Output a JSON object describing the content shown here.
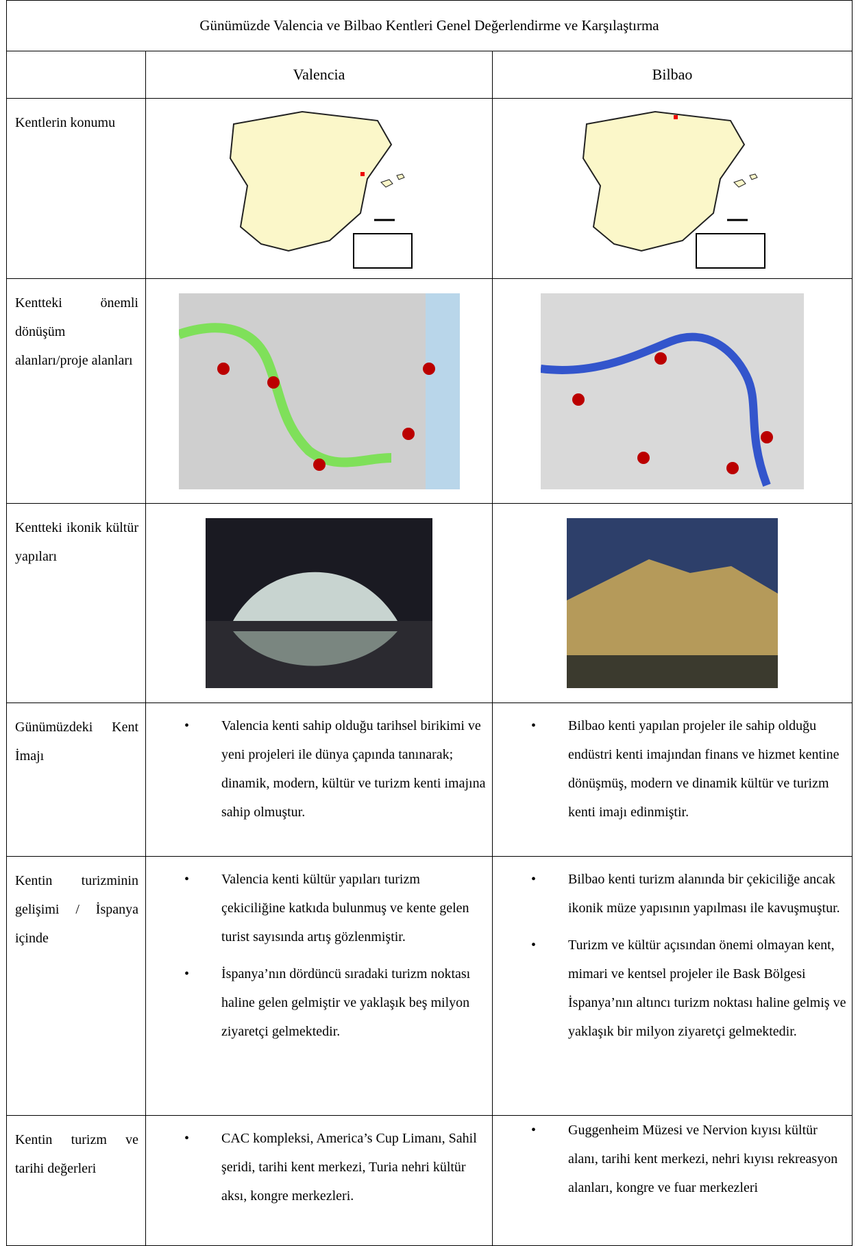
{
  "header": {
    "title": "Günümüzde Valencia ve Bilbao Kentleri Genel Değerlendirme ve Karşılaştırma"
  },
  "table": {
    "columns": [
      "Valencia",
      "Bilbao"
    ],
    "rows": [
      {
        "label": "Kentlerin konumu"
      },
      {
        "label": "Kentteki önemli dönüşüm alanları/proje alanları"
      },
      {
        "label": "Kentteki ikonik kültür yapıları"
      },
      {
        "label": "Günümüzdeki Kent İmajı",
        "valencia": [
          "Valencia kenti sahip olduğu tarihsel birikimi ve yeni projeleri ile dünya çapında tanınarak; dinamik, modern, kültür ve turizm kenti imajına sahip olmuştur."
        ],
        "bilbao": [
          "Bilbao kenti yapılan projeler ile sahip olduğu endüstri kenti imajından finans ve hizmet kentine dönüşmüş, modern ve dinamik kültür ve turizm kenti imajı edinmiştir."
        ]
      },
      {
        "label": "Kentin turizminin gelişimi / İspanya içinde",
        "valencia": [
          "Valencia kenti kültür yapıları turizm çekiciliğine katkıda bulunmuş ve kente gelen turist sayısında artış gözlenmiştir.",
          "İspanya’nın dördüncü sıradaki turizm noktası haline gelen gelmiştir  ve yaklaşık beş milyon ziyaretçi gelmektedir."
        ],
        "bilbao": [
          "Bilbao kenti turizm alanında bir çekiciliğe ancak ikonik müze yapısının yapılması ile kavuşmuştur.",
          "Turizm ve kültür açısından önemi olmayan kent, mimari ve kentsel projeler ile Bask Bölgesi İspanya’nın altıncı turizm noktası haline gelmiş ve yaklaşık bir milyon ziyaretçi gelmektedir."
        ]
      },
      {
        "label": "Kentin turizm ve tarihi değerleri",
        "valencia": [
          "CAC  kompleksi, America’s Cup Limanı, Sahil şeridi, tarihi kent merkezi, Turia nehri kültür aksı, kongre merkezleri."
        ],
        "bilbao": [
          "Guggenheim Müzesi ve Nervion kıyısı kültür alanı, tarihi kent merkezi, nehri kıyısı rekreasyon alanları, kongre ve fuar merkezleri"
        ]
      }
    ]
  }
}
